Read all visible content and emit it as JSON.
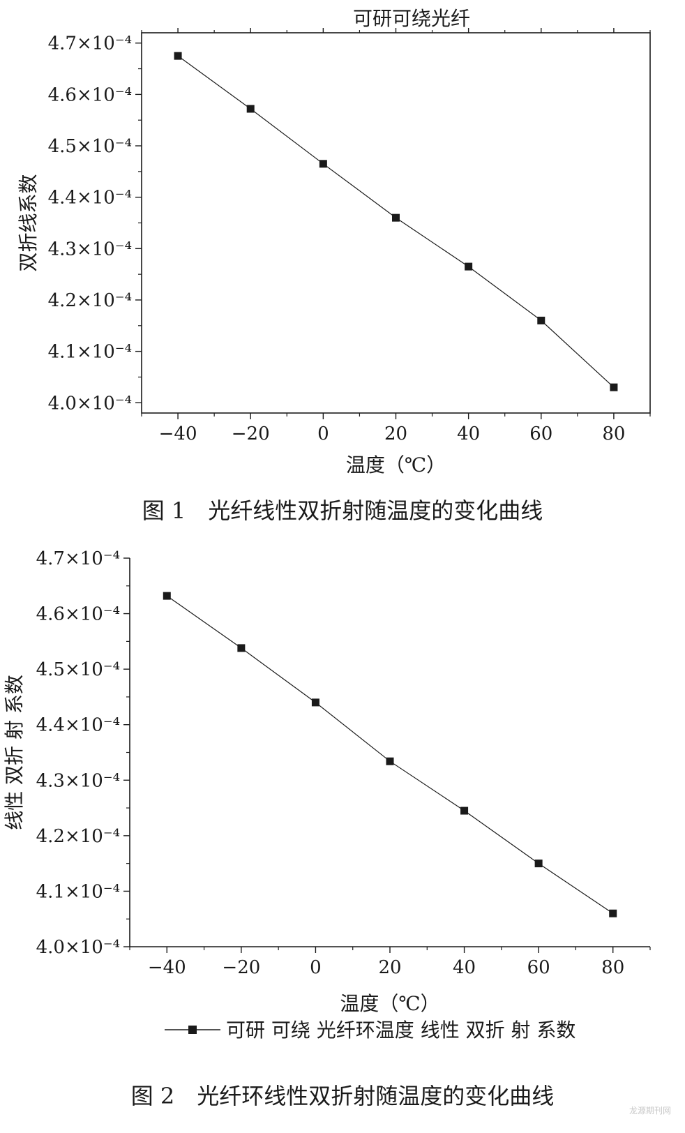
{
  "chart_data": [
    {
      "type": "line",
      "title": "可研可绕光纤",
      "xlabel": "温度（℃）",
      "ylabel": "双折线系数",
      "caption": "图 1　光纤线性双折射随温度的变化曲线",
      "x": [
        -40,
        -20,
        0,
        20,
        40,
        60,
        80
      ],
      "xticks": [
        "−40",
        "−20",
        "0",
        "20",
        "40",
        "60",
        "80"
      ],
      "xlim": [
        -50,
        90
      ],
      "yticks": [
        "4.0×10⁻⁴",
        "4.1×10⁻⁴",
        "4.2×10⁻⁴",
        "4.3×10⁻⁴",
        "4.4×10⁻⁴",
        "4.5×10⁻⁴",
        "4.6×10⁻⁴",
        "4.7×10⁻⁴"
      ],
      "ylim": [
        0.000398,
        0.000472
      ],
      "series": [
        {
          "values": [
            0.0004675,
            0.0004572,
            0.0004465,
            0.000436,
            0.0004265,
            0.000416,
            0.000403
          ],
          "color": "#1a1a1a",
          "marker": "square"
        }
      ],
      "grid": false
    },
    {
      "type": "line",
      "title": "",
      "xlabel": "温度（℃）",
      "ylabel": "线性 双折 射 系数",
      "caption": "图 2　光纤环线性双折射随温度的变化曲线",
      "x": [
        -40,
        -20,
        0,
        20,
        40,
        60,
        80
      ],
      "xticks": [
        "−40",
        "−20",
        "0",
        "20",
        "40",
        "60",
        "80"
      ],
      "xlim": [
        -50,
        90
      ],
      "yticks": [
        "4.0×10⁻⁴",
        "4.1×10⁻⁴",
        "4.2×10⁻⁴",
        "4.3×10⁻⁴",
        "4.4×10⁻⁴",
        "4.5×10⁻⁴",
        "4.6×10⁻⁴",
        "4.7×10⁻⁴"
      ],
      "ylim": [
        0.0004,
        0.00047
      ],
      "series": [
        {
          "name": "可研 可绕 光纤环温度 线性 双折 射 系数",
          "values": [
            0.0004632,
            0.0004538,
            0.000444,
            0.0004334,
            0.0004245,
            0.000415,
            0.000406
          ],
          "color": "#1a1a1a",
          "marker": "square"
        }
      ],
      "legend": "bottom",
      "grid": false
    }
  ],
  "watermark": "龙源期刊网"
}
